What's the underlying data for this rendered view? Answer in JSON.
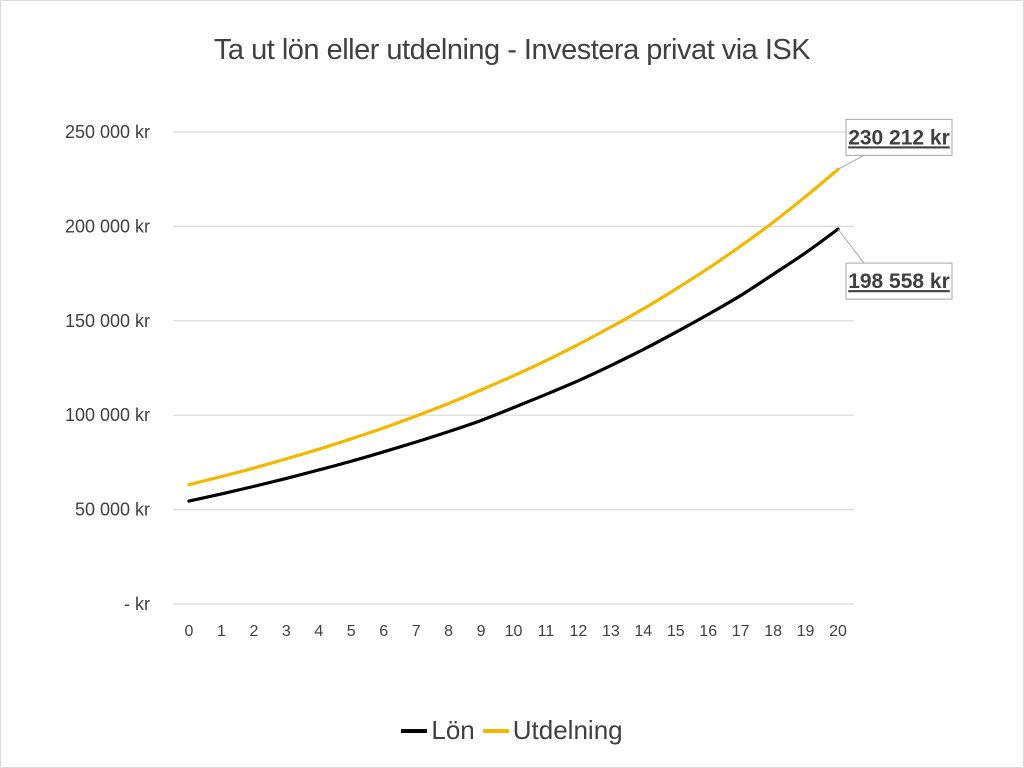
{
  "chart_data": {
    "type": "line",
    "title": "Ta ut lön eller utdelning - Investera privat via ISK",
    "x": [
      0,
      1,
      2,
      3,
      4,
      5,
      6,
      7,
      8,
      9,
      10,
      11,
      12,
      13,
      14,
      15,
      16,
      17,
      18,
      19,
      20
    ],
    "ylim": [
      0,
      250000
    ],
    "yticks": [
      {
        "value": 0,
        "label": "-   kr"
      },
      {
        "value": 50000,
        "label": "50 000 kr"
      },
      {
        "value": 100000,
        "label": "100 000 kr"
      },
      {
        "value": 150000,
        "label": "150 000 kr"
      },
      {
        "value": 200000,
        "label": "200 000 kr"
      },
      {
        "value": 250000,
        "label": "250 000 kr"
      }
    ],
    "grid": true,
    "legend_position": "bottom",
    "series": [
      {
        "name": "Lön",
        "color": "#000000",
        "values": [
          54500,
          58300,
          62300,
          66500,
          71000,
          75600,
          80600,
          85800,
          91300,
          97200,
          104000,
          111000,
          118300,
          126300,
          134800,
          143900,
          153400,
          163400,
          174600,
          186000,
          198558
        ]
      },
      {
        "name": "Utdelning",
        "color": "#F2B800",
        "values": [
          63200,
          67500,
          72000,
          76900,
          82000,
          87500,
          93300,
          99600,
          106200,
          113400,
          120900,
          128900,
          137500,
          146700,
          156300,
          166800,
          177800,
          189600,
          202200,
          215800,
          230212
        ]
      }
    ],
    "annotations": [
      {
        "series": "Utdelning",
        "x": 20,
        "label": "230 212 kr"
      },
      {
        "series": "Lön",
        "x": 20,
        "label": "198 558 kr"
      }
    ]
  }
}
